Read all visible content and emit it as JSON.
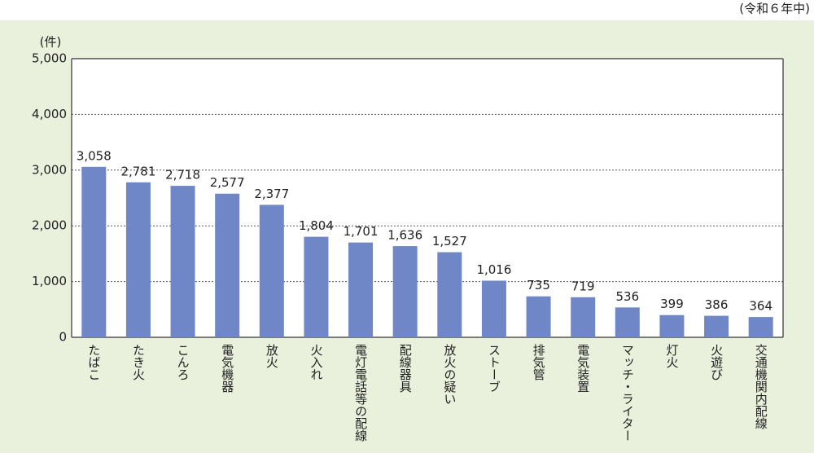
{
  "chart_data": {
    "type": "bar",
    "note": "(令和６年中)",
    "y_unit": "(件)",
    "categories": [
      "たばこ",
      "たき火",
      "こんろ",
      "電気機器",
      "放火",
      "火入れ",
      "電灯電話等の配線",
      "配線器具",
      "放火の疑い",
      "ストーブ",
      "排気管",
      "電気装置",
      "マッチ・ライター",
      "灯火",
      "火遊び",
      "交通機関内配線"
    ],
    "values": [
      3058,
      2781,
      2718,
      2577,
      2377,
      1804,
      1701,
      1636,
      1527,
      1016,
      735,
      719,
      536,
      399,
      386,
      364
    ],
    "value_labels": [
      "3,058",
      "2,781",
      "2,718",
      "2,577",
      "2,377",
      "1,804",
      "1,701",
      "1,636",
      "1,527",
      "1,016",
      "735",
      "719",
      "536",
      "399",
      "386",
      "364"
    ],
    "color": "#6f87c6",
    "ylim": [
      0,
      5000
    ],
    "yticks": [
      0,
      {
        "value": 1000,
        "label": "1,000"
      },
      {
        "value": 2000,
        "label": "2,000"
      },
      {
        "value": 3000,
        "label": "3,000"
      },
      {
        "value": 4000,
        "label": "4,000"
      },
      {
        "value": 5000,
        "label": "5,000"
      }
    ],
    "grid": true
  }
}
